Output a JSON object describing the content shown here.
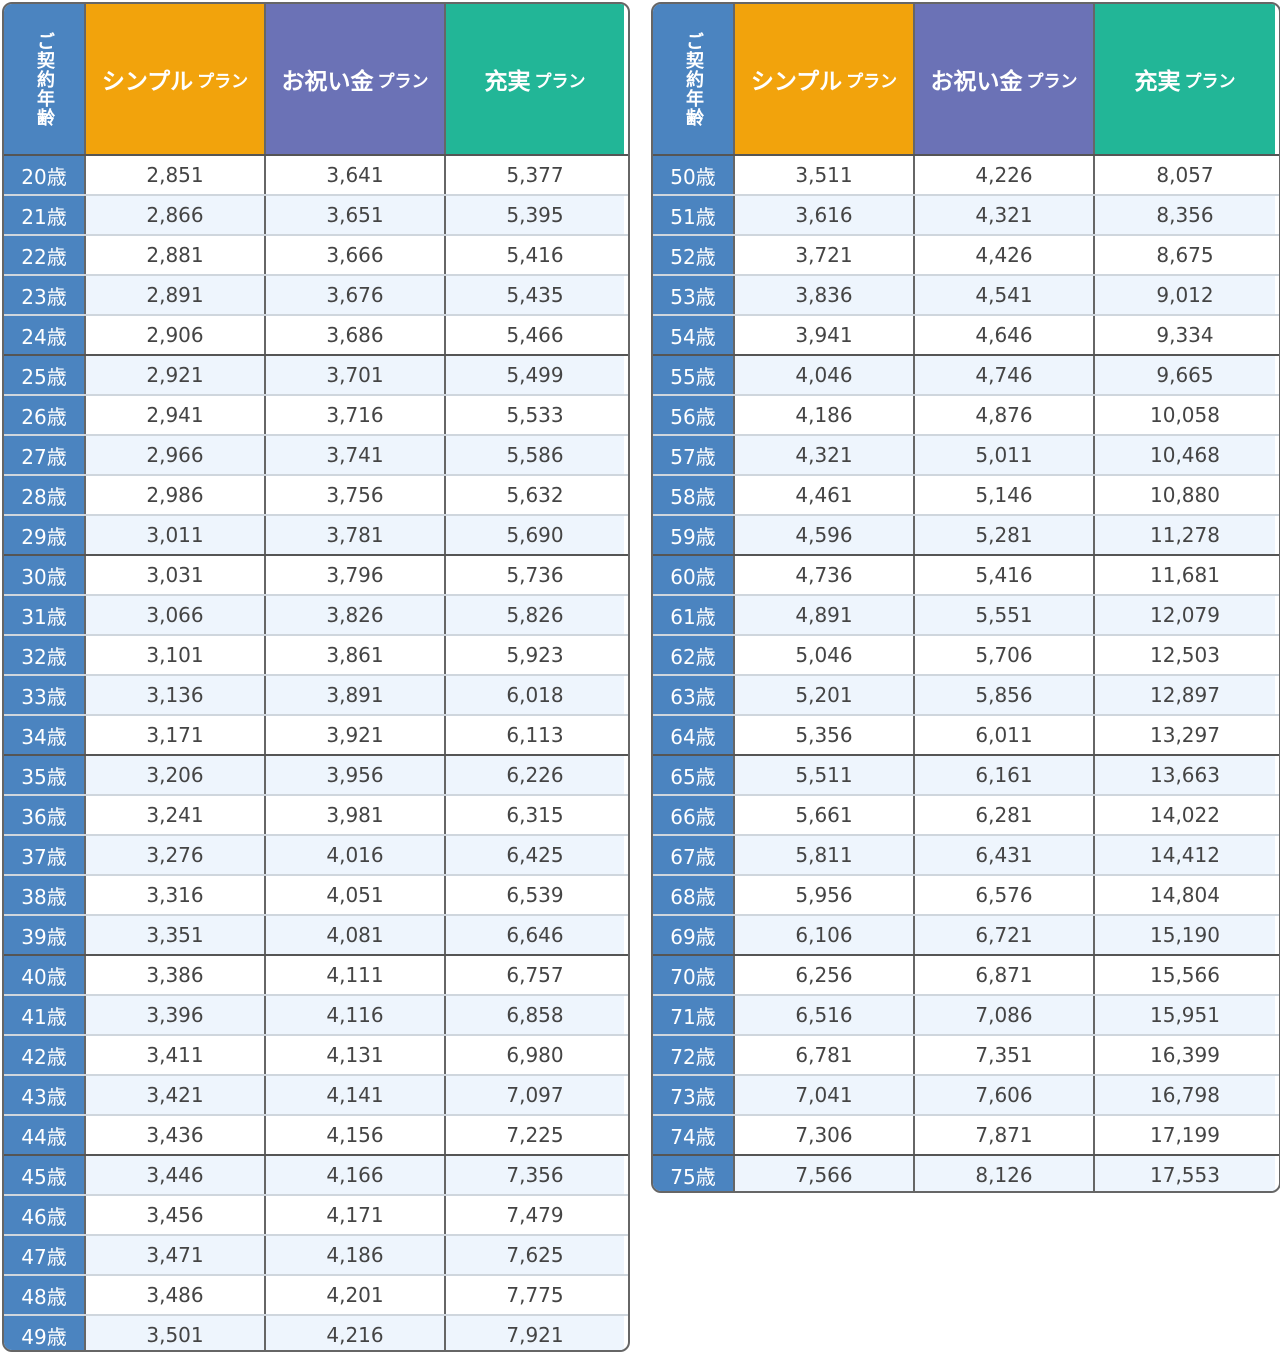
{
  "header": {
    "age_label": "ご契約年齢",
    "simple_main": "シンプル",
    "oiwai_main": "お祝い金",
    "jujitsu_main": "充実",
    "plan_suffix": "プラン"
  },
  "colors": {
    "age_column": "#4b84c0",
    "simple_plan": "#f2a30c",
    "oiwai_plan": "#6b72b6",
    "jujitsu_plan": "#22b697",
    "alt_row": "#eef5fd"
  },
  "left_rows": [
    {
      "age": "20歳",
      "simple": "2,851",
      "oiwai": "3,641",
      "jujitsu": "5,377"
    },
    {
      "age": "21歳",
      "simple": "2,866",
      "oiwai": "3,651",
      "jujitsu": "5,395"
    },
    {
      "age": "22歳",
      "simple": "2,881",
      "oiwai": "3,666",
      "jujitsu": "5,416"
    },
    {
      "age": "23歳",
      "simple": "2,891",
      "oiwai": "3,676",
      "jujitsu": "5,435"
    },
    {
      "age": "24歳",
      "simple": "2,906",
      "oiwai": "3,686",
      "jujitsu": "5,466"
    },
    {
      "age": "25歳",
      "simple": "2,921",
      "oiwai": "3,701",
      "jujitsu": "5,499"
    },
    {
      "age": "26歳",
      "simple": "2,941",
      "oiwai": "3,716",
      "jujitsu": "5,533"
    },
    {
      "age": "27歳",
      "simple": "2,966",
      "oiwai": "3,741",
      "jujitsu": "5,586"
    },
    {
      "age": "28歳",
      "simple": "2,986",
      "oiwai": "3,756",
      "jujitsu": "5,632"
    },
    {
      "age": "29歳",
      "simple": "3,011",
      "oiwai": "3,781",
      "jujitsu": "5,690"
    },
    {
      "age": "30歳",
      "simple": "3,031",
      "oiwai": "3,796",
      "jujitsu": "5,736"
    },
    {
      "age": "31歳",
      "simple": "3,066",
      "oiwai": "3,826",
      "jujitsu": "5,826"
    },
    {
      "age": "32歳",
      "simple": "3,101",
      "oiwai": "3,861",
      "jujitsu": "5,923"
    },
    {
      "age": "33歳",
      "simple": "3,136",
      "oiwai": "3,891",
      "jujitsu": "6,018"
    },
    {
      "age": "34歳",
      "simple": "3,171",
      "oiwai": "3,921",
      "jujitsu": "6,113"
    },
    {
      "age": "35歳",
      "simple": "3,206",
      "oiwai": "3,956",
      "jujitsu": "6,226"
    },
    {
      "age": "36歳",
      "simple": "3,241",
      "oiwai": "3,981",
      "jujitsu": "6,315"
    },
    {
      "age": "37歳",
      "simple": "3,276",
      "oiwai": "4,016",
      "jujitsu": "6,425"
    },
    {
      "age": "38歳",
      "simple": "3,316",
      "oiwai": "4,051",
      "jujitsu": "6,539"
    },
    {
      "age": "39歳",
      "simple": "3,351",
      "oiwai": "4,081",
      "jujitsu": "6,646"
    },
    {
      "age": "40歳",
      "simple": "3,386",
      "oiwai": "4,111",
      "jujitsu": "6,757"
    },
    {
      "age": "41歳",
      "simple": "3,396",
      "oiwai": "4,116",
      "jujitsu": "6,858"
    },
    {
      "age": "42歳",
      "simple": "3,411",
      "oiwai": "4,131",
      "jujitsu": "6,980"
    },
    {
      "age": "43歳",
      "simple": "3,421",
      "oiwai": "4,141",
      "jujitsu": "7,097"
    },
    {
      "age": "44歳",
      "simple": "3,436",
      "oiwai": "4,156",
      "jujitsu": "7,225"
    },
    {
      "age": "45歳",
      "simple": "3,446",
      "oiwai": "4,166",
      "jujitsu": "7,356"
    },
    {
      "age": "46歳",
      "simple": "3,456",
      "oiwai": "4,171",
      "jujitsu": "7,479"
    },
    {
      "age": "47歳",
      "simple": "3,471",
      "oiwai": "4,186",
      "jujitsu": "7,625"
    },
    {
      "age": "48歳",
      "simple": "3,486",
      "oiwai": "4,201",
      "jujitsu": "7,775"
    },
    {
      "age": "49歳",
      "simple": "3,501",
      "oiwai": "4,216",
      "jujitsu": "7,921"
    }
  ],
  "right_rows": [
    {
      "age": "50歳",
      "simple": "3,511",
      "oiwai": "4,226",
      "jujitsu": "8,057"
    },
    {
      "age": "51歳",
      "simple": "3,616",
      "oiwai": "4,321",
      "jujitsu": "8,356"
    },
    {
      "age": "52歳",
      "simple": "3,721",
      "oiwai": "4,426",
      "jujitsu": "8,675"
    },
    {
      "age": "53歳",
      "simple": "3,836",
      "oiwai": "4,541",
      "jujitsu": "9,012"
    },
    {
      "age": "54歳",
      "simple": "3,941",
      "oiwai": "4,646",
      "jujitsu": "9,334"
    },
    {
      "age": "55歳",
      "simple": "4,046",
      "oiwai": "4,746",
      "jujitsu": "9,665"
    },
    {
      "age": "56歳",
      "simple": "4,186",
      "oiwai": "4,876",
      "jujitsu": "10,058"
    },
    {
      "age": "57歳",
      "simple": "4,321",
      "oiwai": "5,011",
      "jujitsu": "10,468"
    },
    {
      "age": "58歳",
      "simple": "4,461",
      "oiwai": "5,146",
      "jujitsu": "10,880"
    },
    {
      "age": "59歳",
      "simple": "4,596",
      "oiwai": "5,281",
      "jujitsu": "11,278"
    },
    {
      "age": "60歳",
      "simple": "4,736",
      "oiwai": "5,416",
      "jujitsu": "11,681"
    },
    {
      "age": "61歳",
      "simple": "4,891",
      "oiwai": "5,551",
      "jujitsu": "12,079"
    },
    {
      "age": "62歳",
      "simple": "5,046",
      "oiwai": "5,706",
      "jujitsu": "12,503"
    },
    {
      "age": "63歳",
      "simple": "5,201",
      "oiwai": "5,856",
      "jujitsu": "12,897"
    },
    {
      "age": "64歳",
      "simple": "5,356",
      "oiwai": "6,011",
      "jujitsu": "13,297"
    },
    {
      "age": "65歳",
      "simple": "5,511",
      "oiwai": "6,161",
      "jujitsu": "13,663"
    },
    {
      "age": "66歳",
      "simple": "5,661",
      "oiwai": "6,281",
      "jujitsu": "14,022"
    },
    {
      "age": "67歳",
      "simple": "5,811",
      "oiwai": "6,431",
      "jujitsu": "14,412"
    },
    {
      "age": "68歳",
      "simple": "5,956",
      "oiwai": "6,576",
      "jujitsu": "14,804"
    },
    {
      "age": "69歳",
      "simple": "6,106",
      "oiwai": "6,721",
      "jujitsu": "15,190"
    },
    {
      "age": "70歳",
      "simple": "6,256",
      "oiwai": "6,871",
      "jujitsu": "15,566"
    },
    {
      "age": "71歳",
      "simple": "6,516",
      "oiwai": "7,086",
      "jujitsu": "15,951"
    },
    {
      "age": "72歳",
      "simple": "6,781",
      "oiwai": "7,351",
      "jujitsu": "16,399"
    },
    {
      "age": "73歳",
      "simple": "7,041",
      "oiwai": "7,606",
      "jujitsu": "16,798"
    },
    {
      "age": "74歳",
      "simple": "7,306",
      "oiwai": "7,871",
      "jujitsu": "17,199"
    },
    {
      "age": "75歳",
      "simple": "7,566",
      "oiwai": "8,126",
      "jujitsu": "17,553"
    }
  ]
}
